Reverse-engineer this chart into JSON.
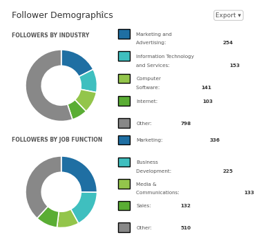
{
  "title": "Follower Demographics",
  "export_btn": "Export ▾",
  "background_color": "#ffffff",
  "industry_label": "FOLLOWERS BY INDUSTRY",
  "industry_values": [
    254,
    153,
    141,
    103,
    798
  ],
  "industry_colors": [
    "#1f6fa3",
    "#3fbfbf",
    "#93c54b",
    "#5aad34",
    "#888888"
  ],
  "industry_legend": [
    {
      "label": "Marketing and\nAdvertising:",
      "value": "254"
    },
    {
      "label": "Information Technology\nand Services:",
      "value": "153"
    },
    {
      "label": "Computer\nSoftware:",
      "value": "141"
    },
    {
      "label": "Internet:",
      "value": "103"
    },
    {
      "label": "Other:",
      "value": "798"
    }
  ],
  "job_label": "FOLLOWERS BY JOB FUNCTION",
  "job_values": [
    336,
    225,
    133,
    132,
    510
  ],
  "job_colors": [
    "#1f6fa3",
    "#3fbfbf",
    "#93c54b",
    "#5aad34",
    "#888888"
  ],
  "job_legend": [
    {
      "label": "Marketing:",
      "value": "336"
    },
    {
      "label": "Business\nDevelopment:",
      "value": "225"
    },
    {
      "label": "Media &\nCommunications:",
      "value": "133"
    },
    {
      "label": "Sales:",
      "value": "132"
    },
    {
      "label": "Other:",
      "value": "510"
    }
  ]
}
